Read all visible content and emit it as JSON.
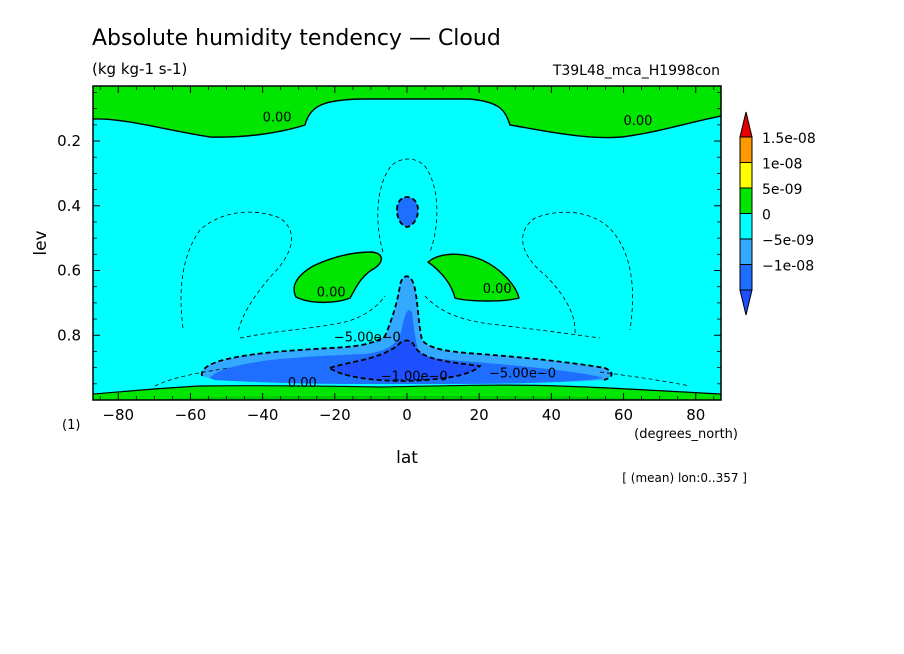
{
  "chart_data": {
    "type": "contour",
    "title": "Absolute humidity tendency — Cloud",
    "units": "(kg kg-1 s-1)",
    "experiment": "T39L48_mca_H1998con",
    "xlabel": "lat",
    "xunits": "(degrees_north)",
    "ylabel": "lev",
    "yunits": "(1)",
    "footnote": "[ (mean) lon:0..357 ]",
    "xlim": [
      -87,
      87
    ],
    "ylim": [
      1.0,
      0.03
    ],
    "xticks": [
      -80,
      -60,
      -40,
      -20,
      0,
      20,
      40,
      60,
      80
    ],
    "xticklabels": [
      "−80",
      "−60",
      "−40",
      "−20",
      "0",
      "20",
      "40",
      "60",
      "80"
    ],
    "yticks": [
      0.2,
      0.4,
      0.6,
      0.8
    ],
    "yticklabels": [
      "0.2",
      "0.4",
      "0.6",
      "0.8"
    ],
    "colorbar": {
      "levels": [
        {
          "label": "1.5e-08",
          "color": "#ff9900"
        },
        {
          "label": "1e-08",
          "color": "#ffff00"
        },
        {
          "label": "5e-09",
          "color": "#00e600"
        },
        {
          "label": "0",
          "color": "#00ffff"
        },
        {
          "label": "−5e-09",
          "color": "#33aaff"
        },
        {
          "label": "−1e-08",
          "color": "#1e6eff"
        }
      ],
      "max_arrow_color": "#e60000",
      "min_arrow_color": "#1e50ff"
    },
    "contour_labels": [
      {
        "text": "0.00",
        "lat": -36,
        "lev": 0.14
      },
      {
        "text": "0.00",
        "lat": 64,
        "lev": 0.15
      },
      {
        "text": "0.00",
        "lat": -21,
        "lev": 0.68
      },
      {
        "text": "0.00",
        "lat": 25,
        "lev": 0.67
      },
      {
        "text": "−5.00e−0",
        "lat": -11,
        "lev": 0.82
      },
      {
        "text": "−1.00e−0",
        "lat": 2,
        "lev": 0.94
      },
      {
        "text": "−5.00e−0",
        "lat": 32,
        "lev": 0.93
      },
      {
        "text": "0.00",
        "lat": -29,
        "lev": 0.96
      }
    ],
    "regions": [
      {
        "name": "upper-positive",
        "sign": "positive",
        "lev_range": [
          0.03,
          0.15
        ]
      },
      {
        "name": "nh-sh-midlevel-positive-lobes",
        "sign": "positive",
        "lat": [
          -32,
          33
        ],
        "lev_range": [
          0.52,
          0.7
        ]
      },
      {
        "name": "equatorial-negative-plume",
        "sign": "negative",
        "lat": [
          -56,
          57
        ],
        "lev_range": [
          0.61,
          0.97
        ]
      },
      {
        "name": "equatorial-upper-negative-cell",
        "sign": "negative",
        "lat": 0,
        "lev": 0.39
      },
      {
        "name": "surface-positive",
        "sign": "positive",
        "lev_range": [
          0.94,
          1.0
        ]
      }
    ]
  }
}
